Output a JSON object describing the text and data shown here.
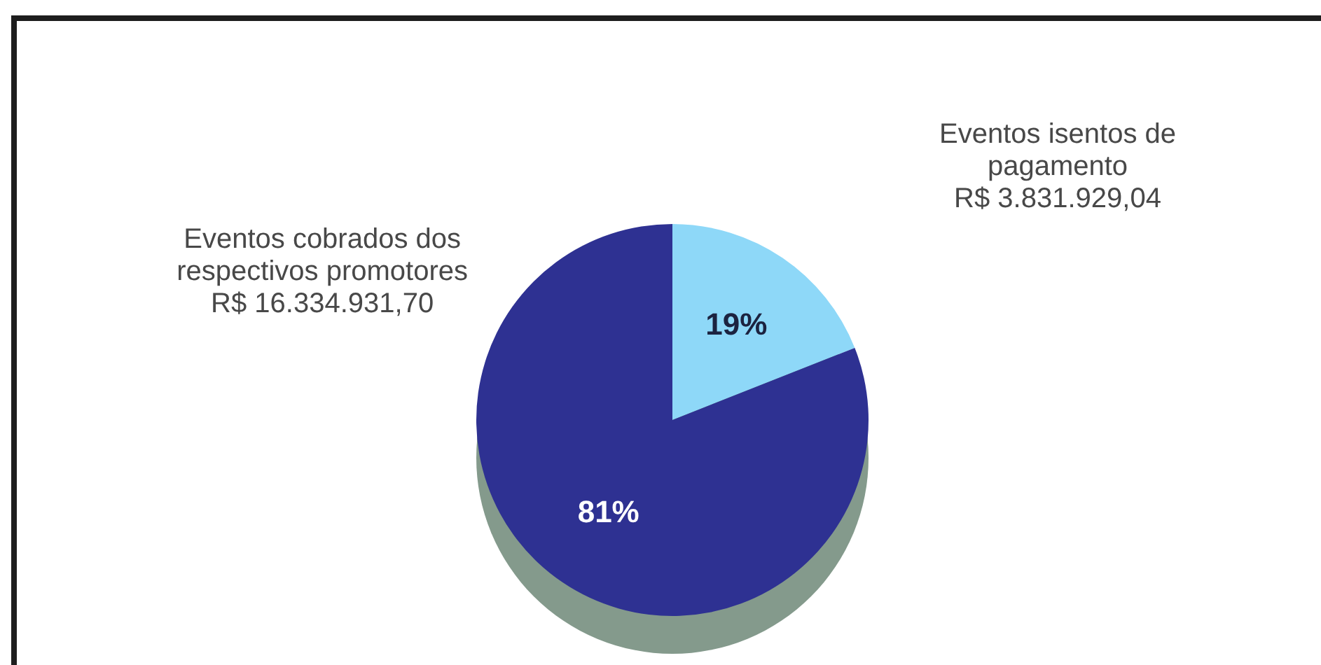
{
  "chart_data": {
    "type": "pie",
    "categories": [
      "Eventos isentos de pagamento",
      "Eventos cobrados dos respectivos promotores"
    ],
    "values": [
      3831929.04,
      16334931.7
    ],
    "colors": [
      "#8ed8f8",
      "#2e3192"
    ],
    "value_labels": [
      "R$ 3.831.929,04",
      "R$ 16.334.931,70"
    ],
    "annotations": [
      "19%",
      "81%"
    ],
    "legend": false
  }
}
